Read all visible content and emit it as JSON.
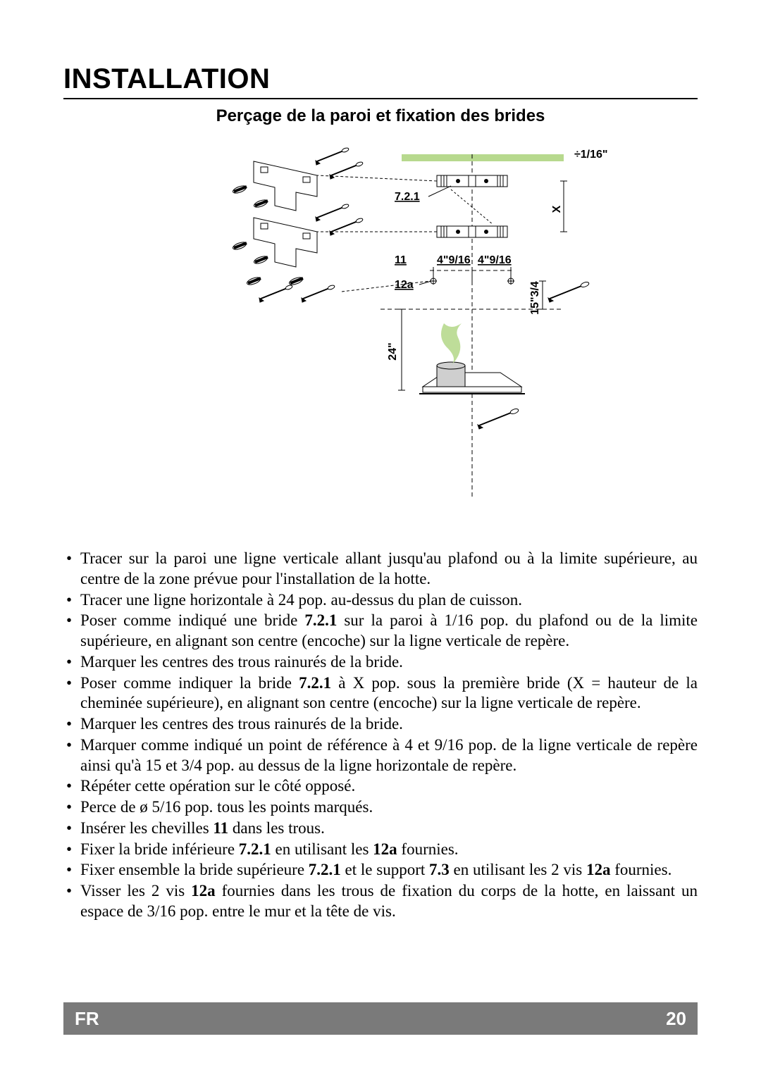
{
  "heading": "INSTALLATION",
  "subheading": "Perçage de la paroi et fixation des brides",
  "footer": {
    "lang": "FR",
    "page": "20"
  },
  "diagram": {
    "labels": {
      "tolerance": "÷1/16\"",
      "bracket_ref": "7.2.1",
      "x_mark": "X",
      "anchor_ref": "11",
      "horiz_spacing_a": "4\"9/16",
      "horiz_spacing_b": "4\"9/16",
      "screw_ref": "12a",
      "height_right": "15\"3/4",
      "height_left": "24\""
    },
    "colors": {
      "highlight": "#b7d98e",
      "line": "#000000",
      "shade": "#cfcfcf"
    }
  },
  "bullets": [
    [
      {
        "t": "Tracer sur la paroi une ligne verticale allant jusqu'au plafond ou à la limite supérieure, au centre de la zone prévue pour l'installation de la hotte."
      }
    ],
    [
      {
        "t": "Tracer une ligne horizontale à 24 pop. au-dessus du plan de cuisson."
      }
    ],
    [
      {
        "t": "Poser comme indiqué une bride "
      },
      {
        "t": "7.2.1",
        "b": true
      },
      {
        "t": " sur la paroi à 1/16 pop. du plafond ou de la limite supérieure, en alignant son centre (encoche) sur la ligne verticale de repère."
      }
    ],
    [
      {
        "t": "Marquer les centres des trous rainurés de la bride."
      }
    ],
    [
      {
        "t": "Poser comme indiquer la bride "
      },
      {
        "t": "7.2.1",
        "b": true
      },
      {
        "t": " à X pop. sous la première bride (X = hauteur de la cheminée supérieure), en alignant son centre (encoche) sur la ligne verticale de repère."
      }
    ],
    [
      {
        "t": "Marquer les centres des trous rainurés de la bride."
      }
    ],
    [
      {
        "t": "Marquer comme indiqué un point de référence à 4 et  9/16  pop. de la ligne verticale de repère ainsi qu'à 15 et 3/4 pop. au dessus de la ligne horizontale de repère."
      }
    ],
    [
      {
        "t": "Répéter cette opération sur le côté opposé."
      }
    ],
    [
      {
        "t": "Perce de ø 5/16 pop. tous les points marqués."
      }
    ],
    [
      {
        "t": "Insérer les chevilles "
      },
      {
        "t": "11",
        "b": true
      },
      {
        "t": " dans les trous."
      }
    ],
    [
      {
        "t": "Fixer la bride inférieure "
      },
      {
        "t": "7.2.1",
        "b": true
      },
      {
        "t": "  en utilisant les "
      },
      {
        "t": "12a",
        "b": true
      },
      {
        "t": " fournies."
      }
    ],
    [
      {
        "t": "Fixer ensemble la bride supérieure "
      },
      {
        "t": "7.2.1",
        "b": true
      },
      {
        "t": " et le support "
      },
      {
        "t": "7.3",
        "b": true
      },
      {
        "t": " en utilisant les 2 vis "
      },
      {
        "t": "12a",
        "b": true
      },
      {
        "t": " fournies."
      }
    ],
    [
      {
        "t": "Visser les 2 vis "
      },
      {
        "t": "12a",
        "b": true
      },
      {
        "t": " fournies dans les trous de fixation du corps de la hotte, en laissant un espace de 3/16 pop. entre le mur et la tête de vis."
      }
    ]
  ]
}
